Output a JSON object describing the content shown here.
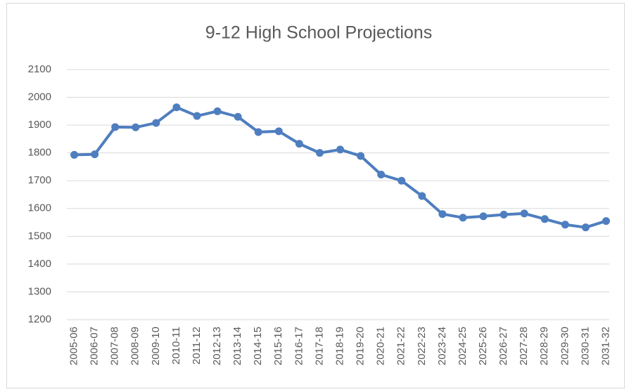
{
  "chart_data": {
    "type": "line",
    "title": "9-12 High School  Projections",
    "categories": [
      "2005-06",
      "2006-07",
      "2007-08",
      "2008-09",
      "2009-10",
      "2010-11",
      "2011-12",
      "2012-13",
      "2013-14",
      "2014-15",
      "2015-16",
      "2016-17",
      "2017-18",
      "2018-19",
      "2019-20",
      "2020-21",
      "2021-22",
      "2022-23",
      "2023-24",
      "2024-25",
      "2025-26",
      "2026-27",
      "2027-28",
      "2028-29",
      "2029-30",
      "2030-31",
      "2031-32"
    ],
    "series": [
      {
        "name": "9-12",
        "color": "#4e7ebf",
        "values": [
          1793,
          1795,
          1893,
          1892,
          1908,
          1964,
          1933,
          1950,
          1930,
          1875,
          1878,
          1833,
          1800,
          1812,
          1789,
          1722,
          1700,
          1645,
          1580,
          1567,
          1572,
          1578,
          1582,
          1562,
          1542,
          1532,
          1555
        ]
      }
    ],
    "ylim": [
      1200,
      2100
    ],
    "yticks": [
      1200,
      1300,
      1400,
      1500,
      1600,
      1700,
      1800,
      1900,
      2000,
      2100
    ],
    "grid": true
  }
}
